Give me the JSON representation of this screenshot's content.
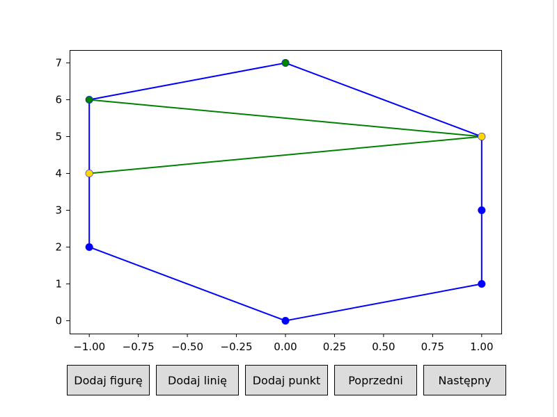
{
  "buttons": {
    "add_figure": "Dodaj figurę",
    "add_line": "Dodaj linię",
    "add_point": "Dodaj punkt",
    "previous": "Poprzedni",
    "next": "Następny"
  },
  "chart_data": {
    "type": "line",
    "title": "",
    "xlabel": "",
    "ylabel": "",
    "xlim": [
      -1.1,
      1.1
    ],
    "ylim": [
      -0.35,
      7.35
    ],
    "xticks": [
      -1.0,
      -0.75,
      -0.5,
      -0.25,
      0.0,
      0.25,
      0.5,
      0.75,
      1.0
    ],
    "xtick_labels": [
      "−1.00",
      "−0.75",
      "−0.50",
      "−0.25",
      "0.00",
      "0.25",
      "0.50",
      "0.75",
      "1.00"
    ],
    "yticks": [
      0,
      1,
      2,
      3,
      4,
      5,
      6,
      7
    ],
    "ytick_labels": [
      "0",
      "1",
      "2",
      "3",
      "4",
      "5",
      "6",
      "7"
    ],
    "grid": false,
    "series": [
      {
        "color": "#0000ff",
        "closed": true,
        "points": [
          [
            0,
            7
          ],
          [
            1,
            5
          ],
          [
            1,
            3
          ],
          [
            1,
            1
          ],
          [
            0,
            0
          ],
          [
            -1,
            2
          ],
          [
            -1,
            4
          ],
          [
            -1,
            6
          ]
        ]
      },
      {
        "color": "#008000",
        "closed": false,
        "points": [
          [
            -1,
            6
          ],
          [
            1,
            5
          ],
          [
            -1,
            4
          ]
        ]
      }
    ],
    "highlight_points": [
      {
        "x": -1,
        "y": 4,
        "color": "#ffd700"
      },
      {
        "x": 1,
        "y": 5,
        "color": "#ffd700"
      },
      {
        "x": 0,
        "y": 7,
        "color": "#008000"
      },
      {
        "x": -1,
        "y": 6,
        "color": "#008000"
      }
    ]
  }
}
